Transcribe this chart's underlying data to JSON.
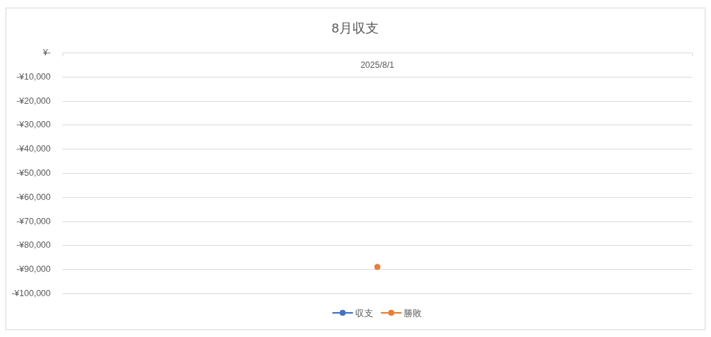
{
  "chart_data": {
    "type": "line",
    "title": "8月収支",
    "categories": [
      "2025/8/1"
    ],
    "series": [
      {
        "name": "収支",
        "color": "#4472c4",
        "values": [
          null
        ]
      },
      {
        "name": "勝敗",
        "color": "#ed7d31",
        "values": [
          -89000
        ]
      }
    ],
    "ylim": [
      -100000,
      0
    ],
    "yticks": [
      {
        "value": 0,
        "label": "¥-"
      },
      {
        "value": -10000,
        "label": "-¥10,000"
      },
      {
        "value": -20000,
        "label": "-¥20,000"
      },
      {
        "value": -30000,
        "label": "-¥30,000"
      },
      {
        "value": -40000,
        "label": "-¥40,000"
      },
      {
        "value": -50000,
        "label": "-¥50,000"
      },
      {
        "value": -60000,
        "label": "-¥60,000"
      },
      {
        "value": -70000,
        "label": "-¥70,000"
      },
      {
        "value": -80000,
        "label": "-¥80,000"
      },
      {
        "value": -90000,
        "label": "-¥90,000"
      },
      {
        "value": -100000,
        "label": "-¥100,000"
      }
    ],
    "grid": "y",
    "legend": "bottom",
    "marker": "circle",
    "line_style": "solid"
  }
}
